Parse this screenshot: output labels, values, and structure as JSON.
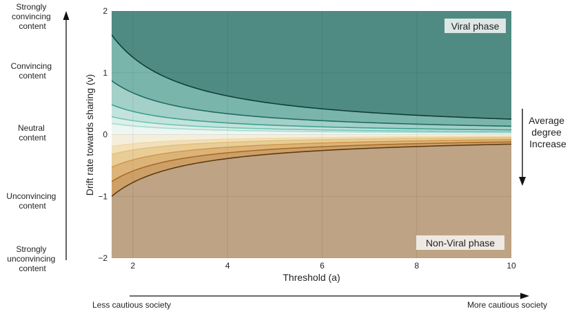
{
  "chart_data": {
    "type": "area",
    "title": "",
    "xlabel": "Threshold (a)",
    "ylabel": "Drift rate towards sharing (ν)",
    "xlim": [
      1.55,
      10
    ],
    "ylim": [
      -2,
      2
    ],
    "x_ticks": [
      2,
      4,
      6,
      8,
      10
    ],
    "y_ticks": [
      -2,
      -1,
      0,
      1,
      2
    ],
    "grid": true,
    "regions": [
      {
        "name": "Viral phase",
        "side": "above",
        "color": "#4f8b83"
      },
      {
        "name": "Non-Viral phase",
        "side": "below",
        "color": "#bea384"
      }
    ],
    "curve_model": "nu = k / a",
    "series": [
      {
        "name": "upper-1",
        "k": 2.5,
        "line_color": "#0f3d37"
      },
      {
        "name": "upper-2",
        "k": 1.35,
        "line_color": "#1e6b62"
      },
      {
        "name": "upper-3",
        "k": 0.75,
        "line_color": "#3c9f92"
      },
      {
        "name": "upper-4",
        "k": 0.45,
        "line_color": "#72c4b6"
      },
      {
        "name": "upper-5",
        "k": 0.28,
        "line_color": "#a5dbd1"
      },
      {
        "name": "lower-5",
        "k": -0.3,
        "line_color": "#efd9a8"
      },
      {
        "name": "lower-4",
        "k": -0.5,
        "line_color": "#e4c07c"
      },
      {
        "name": "lower-3",
        "k": -0.82,
        "line_color": "#cf9a4c"
      },
      {
        "name": "lower-2",
        "k": -1.18,
        "line_color": "#a86c28"
      },
      {
        "name": "lower-1",
        "k": -1.55,
        "line_color": "#5c3a10"
      }
    ],
    "band_fills_upper": [
      "#7ab5ac",
      "#a3d0c8",
      "#c3e3dc",
      "#ddf0ea",
      "#edf6f2"
    ],
    "band_fills_lower": [
      "#f6eedc",
      "#f1e0ba",
      "#e9cd97",
      "#dcb479",
      "#cda068"
    ],
    "annotations": {
      "viral": "Viral phase",
      "nonviral": "Non-Viral phase"
    }
  },
  "left_axis": {
    "labels": [
      {
        "lines": [
          "Strongly",
          "convincing",
          "content"
        ]
      },
      {
        "lines": [
          "Convincing",
          "content"
        ]
      },
      {
        "lines": [
          "Neutral",
          "content"
        ]
      },
      {
        "lines": [
          "Unconvincing",
          "content"
        ]
      },
      {
        "lines": [
          "Strongly",
          "unconvincing",
          "content"
        ]
      }
    ]
  },
  "right_annotation": {
    "lines": [
      "Average",
      "degree",
      "Increase"
    ]
  },
  "bottom_axis": {
    "left": "Less cautious society",
    "right": "More cautious society"
  }
}
